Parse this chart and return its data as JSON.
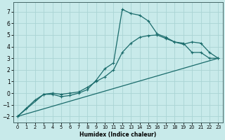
{
  "xlabel": "Humidex (Indice chaleur)",
  "background_color": "#c8eaea",
  "grid_color": "#aad4d4",
  "line_color": "#1a6b6b",
  "xlim": [
    -0.5,
    23.5
  ],
  "ylim": [
    -2.5,
    7.8
  ],
  "xticks": [
    0,
    1,
    2,
    3,
    4,
    5,
    6,
    7,
    8,
    9,
    10,
    11,
    12,
    13,
    14,
    15,
    16,
    17,
    18,
    19,
    20,
    21,
    22,
    23
  ],
  "yticks": [
    -2,
    -1,
    0,
    1,
    2,
    3,
    4,
    5,
    6,
    7
  ],
  "curve1_x": [
    0,
    1,
    2,
    3,
    4,
    5,
    6,
    7,
    8,
    9,
    10,
    11,
    12,
    13,
    14,
    15,
    16,
    17,
    18,
    19,
    20,
    21,
    22,
    23
  ],
  "curve1_y": [
    -2.0,
    -1.3,
    -0.6,
    -0.1,
    -0.1,
    -0.3,
    -0.2,
    -0.0,
    0.3,
    1.1,
    2.1,
    2.6,
    7.2,
    6.85,
    6.7,
    6.2,
    5.1,
    4.8,
    4.4,
    4.3,
    3.5,
    3.5,
    3.0,
    3.0
  ],
  "curve2_x": [
    0,
    3,
    4,
    5,
    6,
    7,
    8,
    9,
    10,
    11,
    12,
    13,
    14,
    15,
    16,
    17,
    18,
    19,
    20,
    21,
    22,
    23
  ],
  "curve2_y": [
    -2.0,
    -0.1,
    0.0,
    -0.1,
    0.0,
    0.1,
    0.5,
    1.0,
    1.4,
    2.0,
    3.5,
    4.3,
    4.8,
    4.95,
    5.0,
    4.7,
    4.4,
    4.2,
    4.4,
    4.3,
    3.5,
    3.0
  ],
  "curve3_x": [
    0,
    23
  ],
  "curve3_y": [
    -2.0,
    3.0
  ],
  "marker_style": "+",
  "marker_size": 3,
  "line_width": 0.9
}
